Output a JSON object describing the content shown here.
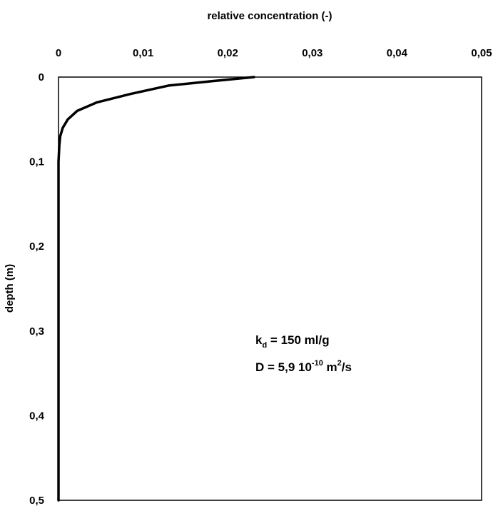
{
  "chart_data": {
    "type": "line",
    "title": "",
    "xlabel": "relative concentration (-)",
    "ylabel": "depth (m)",
    "xlim": [
      0,
      0.05
    ],
    "ylim": [
      0,
      0.5
    ],
    "y_inverted": true,
    "x_axis_position": "top",
    "grid": false,
    "x_tick_labels": [
      "0",
      "0,01",
      "0,02",
      "0,03",
      "0,04",
      "0,05"
    ],
    "y_tick_labels": [
      "0",
      "0,1",
      "0,2",
      "0,3",
      "0,4",
      "0,5"
    ],
    "series": [
      {
        "x": [
          0.0231,
          0.018,
          0.013,
          0.0085,
          0.0045,
          0.0022,
          0.0011,
          0.0005,
          0.0002,
          0.0001,
          0.0,
          0.0,
          0.0,
          0.0
        ],
        "y": [
          0.0,
          0.005,
          0.01,
          0.02,
          0.03,
          0.04,
          0.05,
          0.06,
          0.07,
          0.08,
          0.1,
          0.2,
          0.3,
          0.5
        ]
      }
    ],
    "annotations": {
      "kd": {
        "symbol": "k",
        "subscript": "d",
        "rest": " = 150 ml/g"
      },
      "D": {
        "base": "D = 5,9 10",
        "exp1": "-10",
        "mid": " m",
        "exp2": "2",
        "end": "/s"
      }
    }
  }
}
